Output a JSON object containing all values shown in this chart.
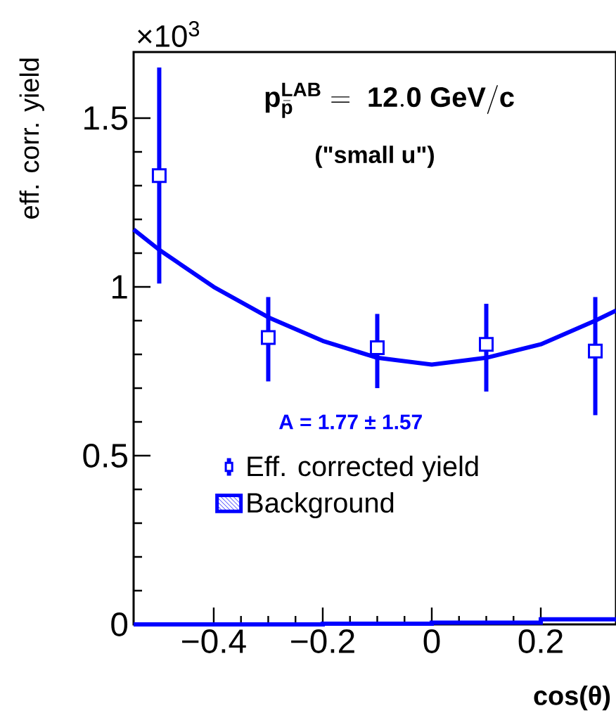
{
  "chart_data": {
    "type": "scatter",
    "title": "\\mathbf{p}^{\\mathbf{LAB}}_{\\bar{\\mathbf{p}}}\\mathbf{\\;=\\;12.0\\;GeV/c}",
    "subtitle": "(\"small u\")",
    "xlabel": "cos(θ)",
    "ylabel": "eff. corr. yield",
    "annotations": [
      "×10$^{3}$",
      "A =  1.77  ±  1.57"
    ],
    "xlim": [
      -0.547,
      0.338
    ],
    "ylim": [
      0,
      1.696
    ],
    "xticks": [
      {
        "value": -0.4,
        "label": "−0.4"
      },
      {
        "value": -0.2,
        "label": "−0.2"
      },
      0,
      0.2
    ],
    "yticks": [
      0,
      0.5,
      1,
      1.5
    ],
    "legend": "left",
    "series": [
      {
        "name": "Eff. corrected yield",
        "marker": "square",
        "color": "#0000ff",
        "x": [
          -0.5,
          -0.3,
          -0.1,
          0.1,
          0.3
        ],
        "values": [
          1.33,
          0.85,
          0.82,
          0.83,
          0.81
        ],
        "errors": [
          [
            1.01,
            1.65
          ],
          [
            0.72,
            0.97
          ],
          [
            0.7,
            0.92
          ],
          [
            0.69,
            0.95
          ],
          [
            0.62,
            0.97
          ]
        ]
      },
      {
        "type": "line",
        "color": "#0000ff",
        "x": [
          -0.547,
          -0.5,
          -0.4,
          -0.3,
          -0.2,
          -0.1,
          0,
          0.1,
          0.2,
          0.3,
          0.338
        ],
        "values": [
          1.17,
          1.11,
          1.0,
          0.91,
          0.84,
          0.79,
          0.77,
          0.79,
          0.83,
          0.9,
          0.93
        ]
      },
      {
        "name": "Background",
        "type": "step",
        "color": "#0000ff",
        "x": [
          -0.547,
          -0.2,
          0,
          0.2,
          0.338
        ],
        "values": [
          0,
          0.002,
          0.005,
          0.015,
          0.015
        ]
      }
    ]
  }
}
